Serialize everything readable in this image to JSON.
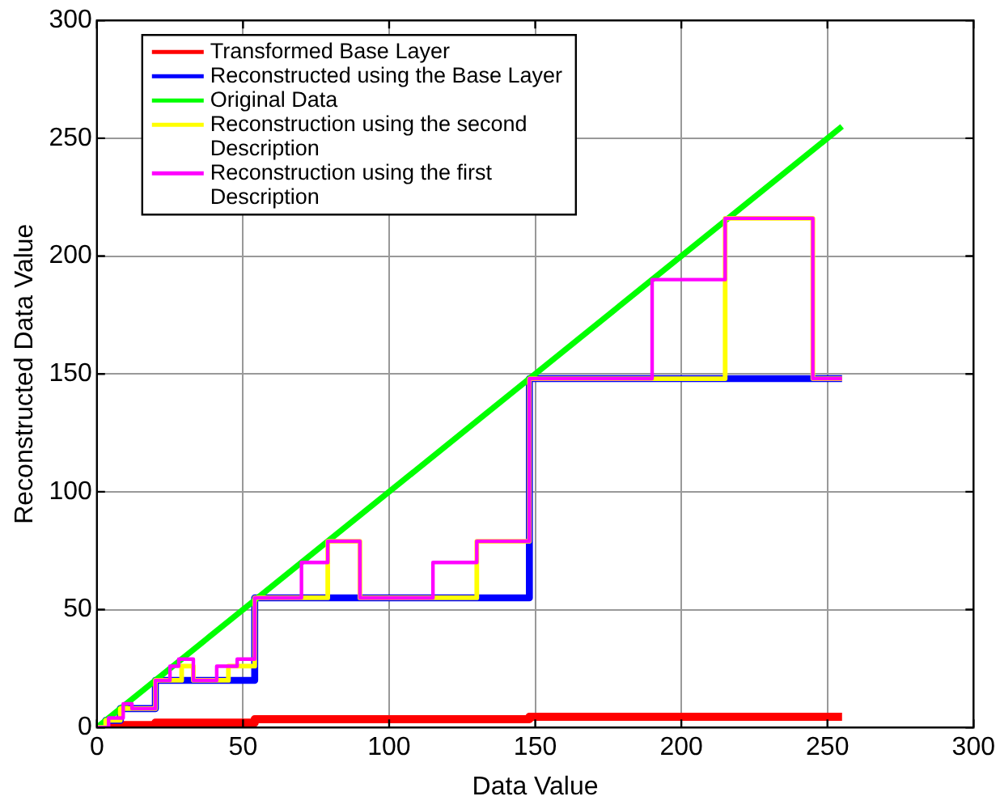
{
  "chart_data": {
    "type": "line",
    "xlabel": "Data Value",
    "ylabel": "Reconstructed Data Value",
    "xlim": [
      0,
      300
    ],
    "ylim": [
      0,
      300
    ],
    "xticks": [
      0,
      50,
      100,
      150,
      200,
      250,
      300
    ],
    "yticks": [
      0,
      50,
      100,
      150,
      200,
      250,
      300
    ],
    "grid": true,
    "legend": "top left",
    "line_style": "solid",
    "marker": "none",
    "series": [
      {
        "name": "Transformed Base Layer",
        "color": "#ff0000",
        "x": [
          0,
          4,
          20,
          20,
          54,
          54,
          148,
          148,
          255
        ],
        "values": [
          0,
          1,
          1,
          2,
          2,
          3.5,
          3.5,
          4.5,
          4.5
        ]
      },
      {
        "name": "Reconstructed using the Base Layer",
        "color": "#0000ff",
        "x": [
          0,
          3,
          3,
          8,
          8,
          20,
          20,
          54,
          54,
          148,
          148,
          255
        ],
        "values": [
          0,
          0,
          3,
          3,
          8,
          8,
          20,
          20,
          55,
          55,
          148,
          148
        ]
      },
      {
        "name": "Original Data",
        "color": "#00ff00",
        "x": [
          0,
          255
        ],
        "values": [
          0,
          255
        ]
      },
      {
        "name": "Reconstruction using the second Description",
        "color": "#ffff00",
        "x": [
          0,
          3,
          3,
          8,
          8,
          20,
          20,
          29,
          29,
          33,
          33,
          45,
          45,
          54,
          54,
          79,
          79,
          90,
          90,
          130,
          130,
          148,
          148,
          215,
          215,
          245,
          245,
          255
        ],
        "values": [
          0,
          0,
          3,
          3,
          8,
          8,
          20,
          20,
          26,
          26,
          20,
          20,
          26,
          26,
          55,
          55,
          79,
          79,
          55,
          55,
          79,
          79,
          148,
          148,
          216,
          216,
          148,
          148
        ]
      },
      {
        "name": "Reconstruction using the first Description",
        "color": "#ff00ff",
        "x": [
          0,
          4,
          4,
          9,
          9,
          12,
          12,
          20,
          20,
          25,
          25,
          28,
          28,
          33,
          33,
          41,
          41,
          48,
          48,
          54,
          54,
          70,
          70,
          79,
          79,
          90,
          90,
          115,
          115,
          130,
          130,
          148,
          148,
          190,
          190,
          215,
          215,
          245,
          245,
          255
        ],
        "values": [
          0,
          0,
          4,
          4,
          10,
          10,
          8,
          8,
          20,
          20,
          26,
          26,
          29,
          29,
          20,
          20,
          26,
          26,
          29,
          29,
          55,
          55,
          70,
          70,
          79,
          79,
          55,
          55,
          70,
          70,
          79,
          79,
          148,
          148,
          190,
          190,
          216,
          216,
          148,
          148
        ]
      }
    ]
  }
}
